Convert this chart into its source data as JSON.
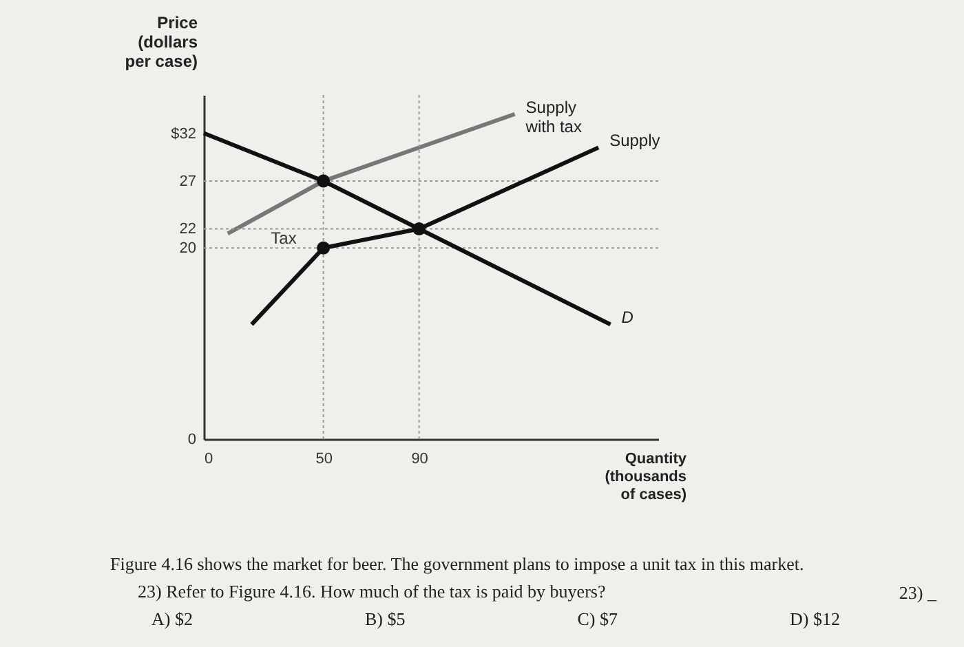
{
  "chart_data": {
    "type": "line",
    "xlabel": "Quantity (thousands of cases)",
    "ylabel": "Price (dollars per case)",
    "xlim": [
      0,
      190
    ],
    "ylim": [
      0,
      36
    ],
    "xticks": [
      0,
      50,
      90
    ],
    "yticks": [
      0,
      20,
      22,
      27,
      {
        "value": 32,
        "label": "$32"
      }
    ],
    "series": [
      {
        "name": "Supply with tax",
        "color": "#777777",
        "x": [
          10,
          50,
          130
        ],
        "values": [
          21.5,
          27,
          34
        ]
      },
      {
        "name": "Supply",
        "color": "#111111",
        "x": [
          20,
          50,
          90,
          165
        ],
        "values": [
          12,
          20,
          22,
          30.5
        ]
      },
      {
        "name": "D",
        "color": "#111111",
        "x": [
          0,
          50,
          90,
          170
        ],
        "values": [
          32,
          27,
          22,
          12
        ]
      },
      {
        "type": "scatter",
        "color": "#111111",
        "marker": "circle",
        "x": [
          50,
          90,
          50
        ],
        "values": [
          27,
          22,
          20
        ]
      }
    ],
    "ref_lines": [
      {
        "axis": "y",
        "value": 27,
        "color": "#999999",
        "line_style": "dotted"
      },
      {
        "axis": "y",
        "value": 22,
        "color": "#999999",
        "line_style": "dotted"
      },
      {
        "axis": "y",
        "value": 20,
        "color": "#999999",
        "line_style": "dotted"
      },
      {
        "axis": "x",
        "value": 50,
        "color": "#999999",
        "line_style": "dotted"
      },
      {
        "axis": "x",
        "value": 90,
        "color": "#999999",
        "line_style": "dotted"
      }
    ],
    "grid": false,
    "marker": "none",
    "line_style": "solid",
    "annotations": [
      "Tax",
      "Figure 4.16 shows the market for beer. The government plans to impose a unit tax in this market.",
      "23) Refer to Figure 4.16. How much of the tax is paid by buyers?",
      "A) $2",
      "B) $5",
      "C) $7",
      "D) $12",
      "23) _"
    ]
  }
}
